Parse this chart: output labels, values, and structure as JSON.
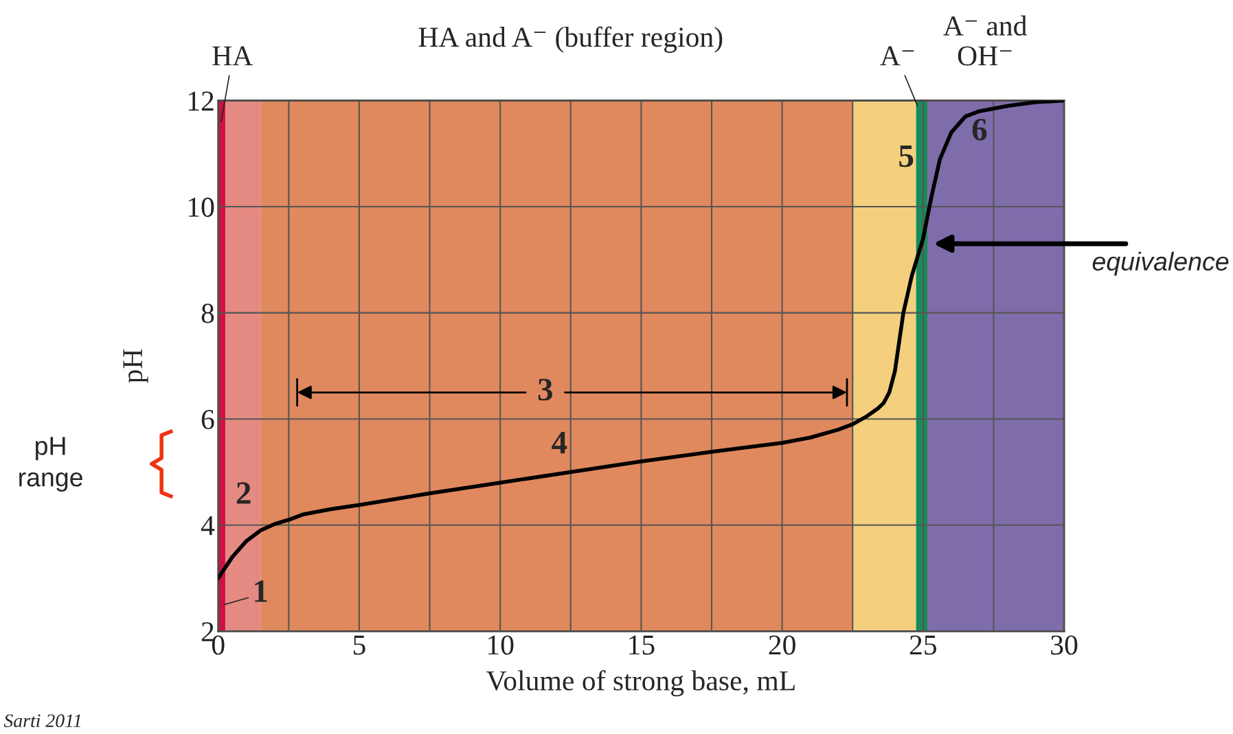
{
  "chart_data": {
    "type": "line",
    "xlabel": "Volume of strong base, mL",
    "ylabel": "pH",
    "x": [
      0,
      0.5,
      1,
      1.5,
      2,
      2.5,
      3,
      4,
      5,
      7.5,
      10,
      12.5,
      15,
      17.5,
      20,
      21,
      22,
      22.5,
      23,
      23.4,
      23.6,
      23.8,
      24,
      24.3,
      24.6,
      25,
      25.3,
      25.6,
      26,
      26.5,
      27,
      28,
      29,
      30
    ],
    "series": [
      {
        "color": "#000000",
        "values": [
          3.0,
          3.4,
          3.7,
          3.9,
          4.02,
          4.1,
          4.2,
          4.3,
          4.38,
          4.6,
          4.8,
          5.0,
          5.2,
          5.38,
          5.55,
          5.65,
          5.8,
          5.9,
          6.05,
          6.2,
          6.3,
          6.5,
          6.9,
          8.0,
          8.7,
          9.4,
          10.2,
          10.9,
          11.4,
          11.7,
          11.8,
          11.9,
          11.97,
          12.0
        ]
      }
    ],
    "xlim": [
      0,
      30
    ],
    "xticks": [
      0,
      {
        "value": 2.5,
        "label": null
      },
      5,
      {
        "value": 7.5,
        "label": null
      },
      10,
      {
        "value": 12.5,
        "label": null
      },
      15,
      {
        "value": 17.5,
        "label": null
      },
      20,
      {
        "value": 22.5,
        "label": null
      },
      25,
      {
        "value": 27.5,
        "label": null
      },
      30
    ],
    "ylim": [
      2,
      12
    ],
    "yticks": [
      2,
      4,
      6,
      8,
      10,
      12
    ],
    "grid": true,
    "marker": "none",
    "line_style": "solid",
    "bands": [
      {
        "axis": "x",
        "from": 0,
        "to": 0.25,
        "color": "#cc1144"
      },
      {
        "axis": "x",
        "from": 0.25,
        "to": 1.5,
        "color": "#e48a82"
      },
      {
        "axis": "x",
        "from": 1.5,
        "to": 22.5,
        "color": "#e0895e"
      },
      {
        "axis": "x",
        "from": 22.5,
        "to": 24.75,
        "color": "#f3cf7e"
      },
      {
        "axis": "x",
        "from": 24.75,
        "to": 25.15,
        "color": "#1a8a5a"
      },
      {
        "axis": "x",
        "from": 25.15,
        "to": 30,
        "color": "#7f6cab"
      }
    ],
    "annotations": [
      "HA",
      "HA and A⁻ (buffer region)",
      "A⁻",
      "A⁻ and\nOH⁻",
      "1",
      "2",
      "3",
      "4",
      "5",
      "6",
      "equivalence",
      "pH\nrange",
      "Sarti 2011"
    ]
  }
}
